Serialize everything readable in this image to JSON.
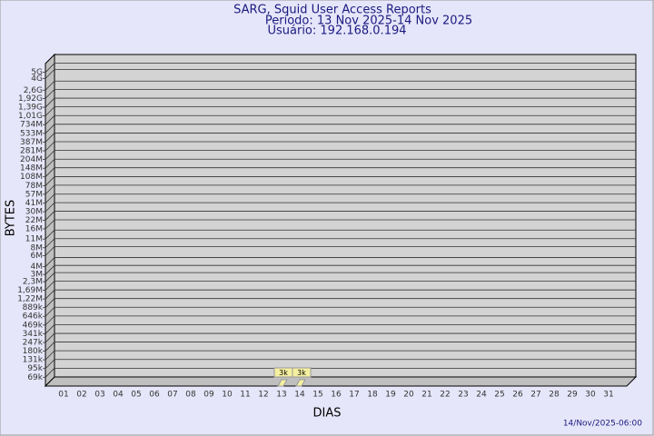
{
  "chart_data": {
    "type": "bar",
    "title": "SARG, Squid User Access Reports",
    "subtitle": "Período: 13 Nov 2025-14 Nov 2025",
    "user": "Usuário: 192.168.0.194",
    "x_label": "DIAS",
    "y_label": "BYTES",
    "footer": "14/Nov/2025-06:00",
    "categories": [
      "01",
      "02",
      "03",
      "04",
      "05",
      "06",
      "07",
      "08",
      "09",
      "10",
      "11",
      "12",
      "13",
      "14",
      "15",
      "16",
      "17",
      "18",
      "19",
      "20",
      "21",
      "22",
      "23",
      "24",
      "25",
      "26",
      "27",
      "28",
      "29",
      "30",
      "31"
    ],
    "values": [
      null,
      null,
      null,
      null,
      null,
      null,
      null,
      null,
      null,
      null,
      null,
      null,
      3000,
      3000,
      null,
      null,
      null,
      null,
      null,
      null,
      null,
      null,
      null,
      null,
      null,
      null,
      null,
      null,
      null,
      null,
      null
    ],
    "value_labels": [
      null,
      null,
      null,
      null,
      null,
      null,
      null,
      null,
      null,
      null,
      null,
      null,
      "3k",
      "3k",
      null,
      null,
      null,
      null,
      null,
      null,
      null,
      null,
      null,
      null,
      null,
      null,
      null,
      null,
      null,
      null,
      null
    ],
    "color": "#f5f0a0",
    "log_scale": true,
    "grid": true,
    "ylim": [
      50000,
      6900000000
    ],
    "yticks": [
      {
        "value": 69000,
        "label": "69k"
      },
      {
        "value": 95000,
        "label": "95k"
      },
      {
        "value": 131000,
        "label": "131k"
      },
      {
        "value": 180000,
        "label": "180k"
      },
      {
        "value": 247000,
        "label": "247k"
      },
      {
        "value": 341000,
        "label": "341k"
      },
      {
        "value": 469000,
        "label": "469k"
      },
      {
        "value": 646000,
        "label": "646k"
      },
      {
        "value": 889000,
        "label": "889k"
      },
      {
        "value": 1220000,
        "label": "1,22M"
      },
      {
        "value": 1690000,
        "label": "1,69M"
      },
      {
        "value": 2300000,
        "label": "2,3M"
      },
      {
        "value": 3000000,
        "label": "3M"
      },
      {
        "value": 4000000,
        "label": "4M"
      },
      {
        "value": 6000000,
        "label": "6M"
      },
      {
        "value": 8000000,
        "label": "8M"
      },
      {
        "value": 11000000,
        "label": "11M"
      },
      {
        "value": 16000000,
        "label": "16M"
      },
      {
        "value": 22000000,
        "label": "22M"
      },
      {
        "value": 30000000,
        "label": "30M"
      },
      {
        "value": 41000000,
        "label": "41M"
      },
      {
        "value": 57000000,
        "label": "57M"
      },
      {
        "value": 78000000,
        "label": "78M"
      },
      {
        "value": 108000000,
        "label": "108M"
      },
      {
        "value": 148000000,
        "label": "148M"
      },
      {
        "value": 204000000,
        "label": "204M"
      },
      {
        "value": 281000000,
        "label": "281M"
      },
      {
        "value": 387000000,
        "label": "387M"
      },
      {
        "value": 533000000,
        "label": "533M"
      },
      {
        "value": 734000000,
        "label": "734M"
      },
      {
        "value": 1010000000,
        "label": "1,01G"
      },
      {
        "value": 1390000000,
        "label": "1,39G"
      },
      {
        "value": 1920000000,
        "label": "1,92G"
      },
      {
        "value": 2600000000,
        "label": "2,6G"
      },
      {
        "value": 4000000000,
        "label": "4G"
      },
      {
        "value": 5000000000,
        "label": "5G"
      }
    ]
  }
}
